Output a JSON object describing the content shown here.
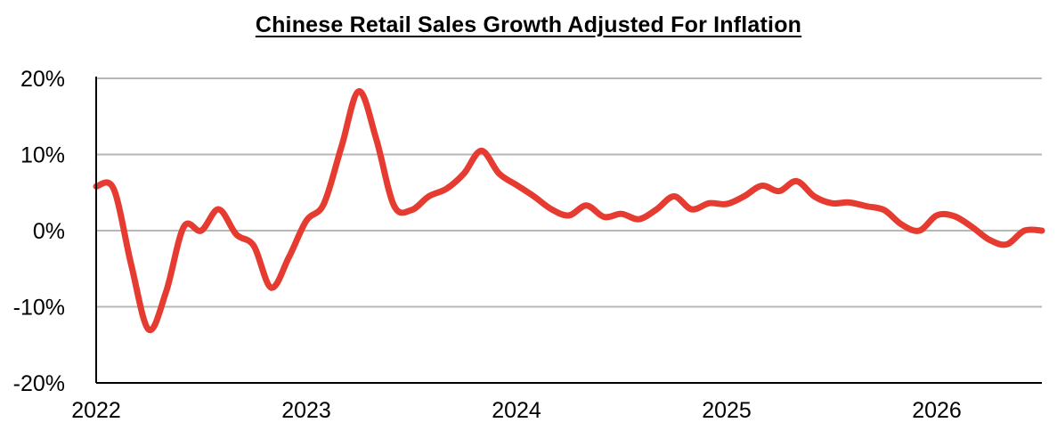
{
  "chart_data": {
    "type": "line",
    "title": "Chinese Retail Sales Growth Adjusted For Inflation",
    "xlabel": "",
    "ylabel": "",
    "x_ticks": [
      "2022",
      "2023",
      "2024",
      "2025",
      "2026"
    ],
    "x_tick_positions": [
      2022,
      2023,
      2024,
      2025,
      2026
    ],
    "xlim": [
      2022,
      2026.5
    ],
    "y_ticks": [
      "-20%",
      "-10%",
      "0%",
      "10%",
      "20%"
    ],
    "y_tick_values": [
      -20,
      -10,
      0,
      10,
      20
    ],
    "ylim": [
      -20,
      20
    ],
    "y_unit": "%",
    "grid": "horizontal",
    "colors": {
      "line": "#E63B30",
      "grid": "#B7B7B7",
      "axis": "#000000"
    },
    "series": [
      {
        "name": "",
        "x": [
          2022.0,
          2022.083,
          2022.167,
          2022.25,
          2022.333,
          2022.417,
          2022.5,
          2022.583,
          2022.667,
          2022.75,
          2022.833,
          2022.917,
          2023.0,
          2023.083,
          2023.167,
          2023.25,
          2023.333,
          2023.417,
          2023.5,
          2023.583,
          2023.667,
          2023.75,
          2023.833,
          2023.917,
          2024.0,
          2024.083,
          2024.167,
          2024.25,
          2024.333,
          2024.417,
          2024.5,
          2024.583,
          2024.667,
          2024.75,
          2024.833,
          2024.917,
          2025.0,
          2025.083,
          2025.167,
          2025.25,
          2025.333,
          2025.417,
          2025.5,
          2025.583,
          2025.667,
          2025.75,
          2025.833,
          2025.917,
          2026.0,
          2026.083,
          2026.167,
          2026.25,
          2026.333,
          2026.417,
          2026.5
        ],
        "y": [
          5.8,
          5.5,
          -4.5,
          -13.0,
          -8.0,
          0.5,
          0.0,
          2.8,
          -0.5,
          -2.0,
          -7.5,
          -3.5,
          1.3,
          3.5,
          11.0,
          18.3,
          12.0,
          3.3,
          2.7,
          4.5,
          5.5,
          7.5,
          10.5,
          7.5,
          6.0,
          4.5,
          2.8,
          2.0,
          3.3,
          1.8,
          2.2,
          1.5,
          2.8,
          4.5,
          2.8,
          3.6,
          3.5,
          4.5,
          5.9,
          5.2,
          6.5,
          4.5,
          3.6,
          3.7,
          3.2,
          2.7,
          0.8,
          0.0,
          2.0,
          1.9,
          0.5,
          -1.2,
          -1.8,
          0.0,
          0.0
        ]
      }
    ]
  }
}
